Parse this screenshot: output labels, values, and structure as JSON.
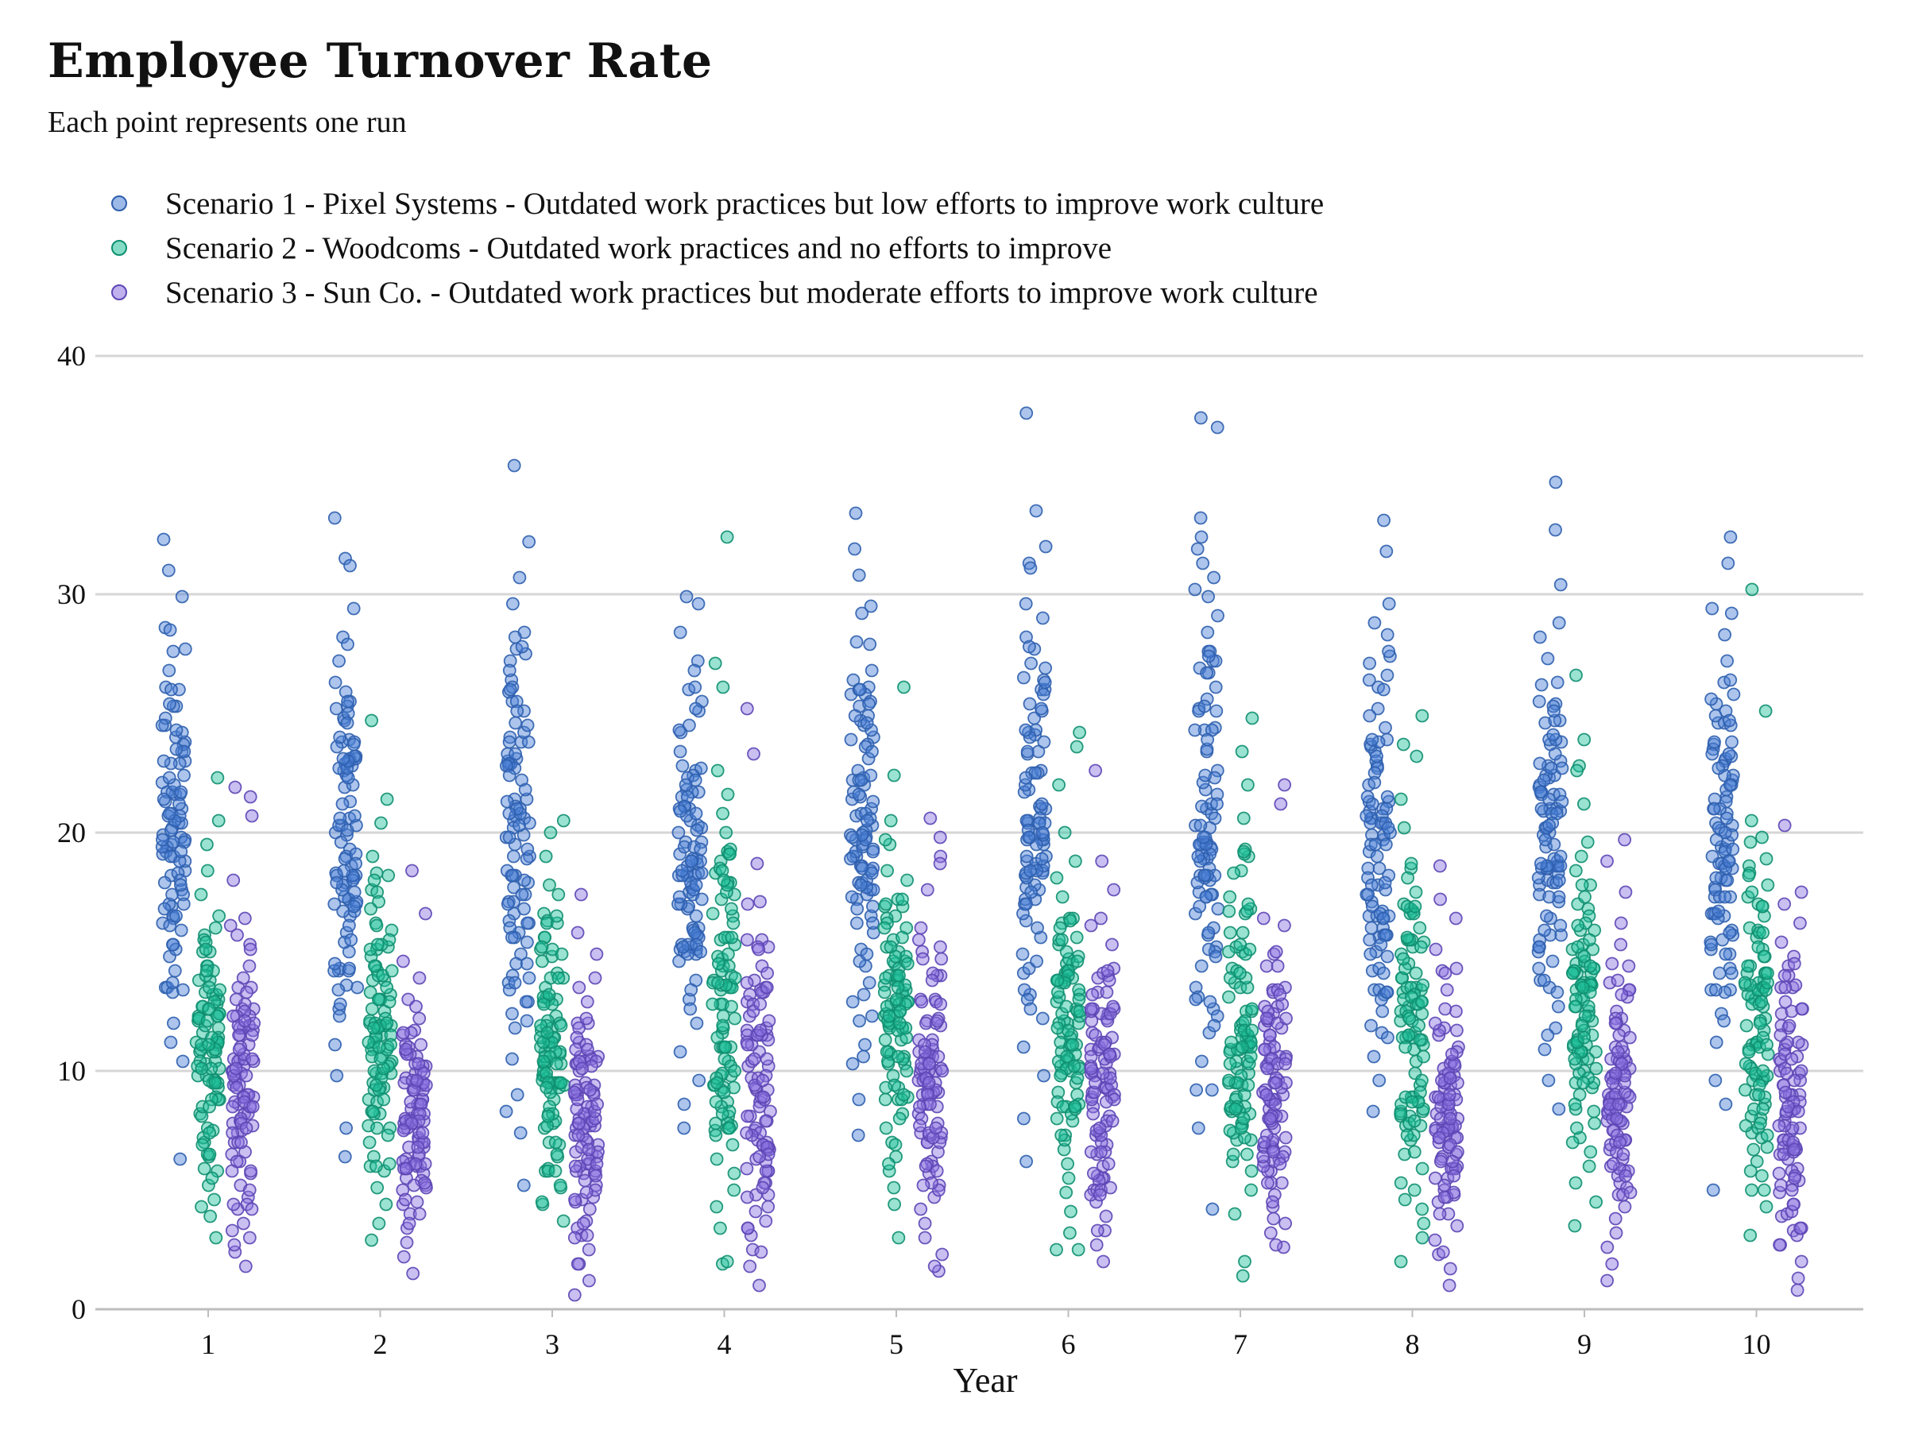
{
  "title": "Employee Turnover Rate",
  "subtitle": "Each point represents one run",
  "chart_data": {
    "type": "scatter",
    "title": "Employee Turnover Rate",
    "subtitle": "Each point represents one run",
    "xlabel": "Year",
    "ylabel": "",
    "ylim": [
      0,
      40
    ],
    "yticks": [
      0,
      10,
      20,
      30,
      40
    ],
    "categories": [
      "1",
      "2",
      "3",
      "4",
      "5",
      "6",
      "7",
      "8",
      "9",
      "10"
    ],
    "grid": "horizontal",
    "legend_position": "top-left",
    "series": [
      {
        "name": "Scenario 1 - Pixel Systems - Outdated work practices but low efforts to improve work culture",
        "color": "#4a7fd4",
        "points_per_year": 100,
        "values_by_year": {
          "1": [
            6.3,
            10.4,
            11.2,
            12.0,
            13.5,
            14.2,
            14.8,
            15.3,
            15.9,
            16.4,
            16.9,
            17.6,
            18.4,
            19.0,
            19.5,
            20.2,
            21.0,
            21.6,
            22.4,
            23.0,
            23.8,
            24.5,
            25.3,
            26.0,
            26.8,
            27.6,
            28.6,
            29.9,
            31.0,
            32.3
          ],
          "2": [
            6.4,
            7.6,
            9.8,
            11.1,
            12.6,
            13.5,
            14.2,
            15.0,
            15.8,
            16.5,
            17.2,
            17.9,
            18.6,
            19.3,
            20.0,
            20.6,
            21.3,
            21.9,
            22.6,
            23.2,
            23.9,
            24.7,
            25.5,
            26.3,
            27.2,
            28.2,
            29.4,
            31.5,
            33.2
          ],
          "3": [
            5.2,
            7.4,
            9.0,
            10.5,
            11.8,
            12.9,
            14.0,
            14.9,
            15.8,
            16.6,
            17.4,
            18.2,
            19.0,
            19.8,
            20.6,
            21.4,
            22.2,
            23.0,
            23.8,
            24.6,
            25.5,
            26.4,
            27.2,
            28.4,
            29.6,
            30.7,
            32.2,
            35.4
          ],
          "4": [
            7.6,
            8.6,
            9.6,
            10.8,
            12.0,
            13.0,
            13.8,
            14.6,
            15.3,
            16.0,
            16.8,
            17.5,
            18.2,
            18.9,
            19.6,
            20.3,
            21.0,
            21.8,
            22.6,
            23.4,
            24.2,
            25.1,
            26.0,
            27.2,
            28.4,
            29.6,
            29.9
          ],
          "5": [
            7.3,
            8.8,
            10.3,
            11.1,
            12.1,
            12.9,
            13.7,
            14.4,
            15.1,
            15.8,
            16.5,
            17.2,
            17.9,
            18.6,
            19.3,
            20.0,
            20.7,
            21.5,
            22.3,
            23.1,
            24.0,
            24.9,
            25.8,
            26.8,
            27.9,
            29.2,
            30.8,
            31.9,
            33.4
          ],
          "6": [
            6.2,
            8.0,
            9.8,
            11.0,
            12.2,
            13.2,
            14.1,
            14.9,
            15.6,
            16.3,
            17.0,
            17.7,
            18.4,
            19.0,
            19.7,
            20.4,
            21.1,
            21.8,
            22.5,
            23.3,
            24.2,
            25.1,
            26.0,
            27.1,
            28.2,
            29.6,
            31.3,
            32.0,
            33.5,
            37.6
          ],
          "7": [
            4.2,
            7.6,
            9.2,
            10.4,
            11.6,
            12.6,
            13.5,
            14.4,
            15.2,
            16.0,
            16.8,
            17.5,
            18.2,
            18.9,
            19.6,
            20.3,
            21.0,
            21.8,
            22.6,
            23.4,
            24.3,
            25.2,
            26.1,
            27.2,
            28.4,
            30.2,
            32.4,
            33.2,
            37.0,
            37.4
          ],
          "8": [
            8.3,
            9.6,
            10.6,
            11.6,
            12.5,
            13.4,
            14.2,
            15.0,
            15.7,
            16.4,
            17.1,
            17.8,
            18.5,
            19.2,
            19.9,
            20.6,
            21.3,
            22.0,
            22.8,
            23.6,
            24.4,
            25.2,
            26.1,
            27.4,
            28.8,
            29.6,
            31.8,
            33.1
          ],
          "9": [
            8.4,
            9.6,
            10.9,
            11.8,
            12.7,
            13.5,
            14.3,
            15.0,
            15.7,
            16.4,
            17.1,
            17.8,
            18.6,
            19.4,
            20.2,
            21.0,
            21.9,
            22.8,
            23.8,
            24.7,
            25.5,
            26.3,
            27.3,
            28.2,
            28.8,
            30.4,
            32.7,
            34.7
          ],
          "10": [
            5.0,
            8.6,
            9.6,
            11.2,
            12.4,
            13.4,
            14.3,
            15.1,
            15.9,
            16.6,
            17.3,
            18.0,
            18.7,
            19.4,
            20.1,
            20.8,
            21.5,
            22.2,
            23.0,
            23.8,
            24.6,
            25.4,
            26.3,
            27.2,
            28.3,
            29.4,
            31.3,
            32.4
          ]
        }
      },
      {
        "name": "Scenario 2 - Woodcoms - Outdated work practices and no efforts to improve",
        "color": "#1fbf98",
        "points_per_year": 100,
        "values_by_year": {
          "1": [
            3.0,
            3.9,
            4.6,
            5.2,
            5.8,
            6.4,
            7.0,
            7.6,
            8.2,
            8.8,
            9.3,
            9.8,
            10.3,
            10.8,
            11.3,
            11.8,
            12.3,
            12.8,
            13.3,
            13.8,
            14.4,
            15.0,
            15.7,
            16.5,
            17.4,
            18.4,
            19.5,
            20.5,
            22.3
          ],
          "2": [
            2.9,
            3.6,
            4.4,
            5.1,
            5.8,
            6.4,
            7.0,
            7.6,
            8.2,
            8.8,
            9.3,
            9.9,
            10.4,
            11.0,
            11.5,
            12.0,
            12.6,
            13.2,
            13.8,
            14.4,
            15.1,
            15.9,
            16.8,
            17.6,
            19.0,
            20.4,
            21.4,
            24.7
          ],
          "3": [
            3.7,
            4.4,
            5.1,
            5.8,
            6.4,
            7.0,
            7.6,
            8.2,
            8.8,
            9.3,
            9.8,
            10.3,
            10.8,
            11.3,
            11.8,
            12.3,
            12.9,
            13.5,
            14.1,
            14.8,
            15.6,
            16.6,
            17.8,
            19.0,
            20.0,
            20.5
          ],
          "4": [
            1.9,
            3.4,
            4.3,
            5.0,
            5.7,
            6.3,
            6.9,
            7.5,
            8.1,
            8.7,
            9.3,
            9.8,
            10.4,
            11.0,
            11.6,
            12.2,
            12.8,
            13.4,
            14.0,
            14.7,
            15.5,
            16.6,
            17.9,
            19.1,
            20.0,
            21.6,
            22.6,
            26.1,
            27.1,
            32.4
          ],
          "5": [
            3.0,
            4.4,
            5.1,
            5.8,
            6.4,
            7.0,
            7.6,
            8.2,
            8.8,
            9.3,
            9.8,
            10.3,
            10.8,
            11.3,
            11.8,
            12.3,
            12.8,
            13.3,
            13.9,
            14.5,
            15.2,
            16.0,
            16.9,
            18.0,
            19.5,
            20.5,
            22.4,
            26.1
          ],
          "6": [
            2.5,
            3.2,
            4.1,
            4.9,
            5.5,
            6.1,
            6.7,
            7.3,
            7.9,
            8.5,
            9.0,
            9.5,
            10.0,
            10.5,
            11.0,
            11.5,
            12.0,
            12.6,
            13.2,
            13.8,
            14.5,
            15.3,
            16.2,
            17.3,
            18.8,
            20.0,
            22.0,
            23.6,
            24.2
          ],
          "7": [
            1.4,
            2.0,
            4.0,
            5.0,
            5.8,
            6.5,
            7.1,
            7.7,
            8.3,
            8.9,
            9.4,
            9.9,
            10.4,
            10.9,
            11.4,
            11.9,
            12.5,
            13.1,
            13.7,
            14.3,
            15.0,
            15.8,
            16.8,
            17.3,
            19.0,
            20.6,
            22.0,
            23.4,
            24.8
          ],
          "8": [
            2.0,
            3.0,
            3.6,
            4.6,
            5.3,
            5.9,
            6.5,
            7.1,
            7.7,
            8.3,
            8.9,
            9.4,
            9.9,
            10.4,
            10.9,
            11.5,
            12.1,
            12.7,
            13.3,
            13.9,
            14.5,
            15.2,
            16.0,
            17.0,
            18.5,
            20.2,
            21.4,
            23.2,
            23.7,
            24.9
          ],
          "9": [
            3.5,
            4.5,
            5.3,
            6.0,
            6.6,
            7.2,
            7.8,
            8.4,
            9.0,
            9.5,
            10.0,
            10.5,
            11.0,
            11.5,
            12.0,
            12.5,
            13.1,
            13.7,
            14.4,
            15.1,
            15.9,
            16.8,
            17.8,
            19.0,
            19.6,
            21.2,
            22.8,
            23.9,
            26.6
          ],
          "10": [
            3.1,
            4.3,
            5.0,
            5.6,
            6.2,
            6.8,
            7.4,
            8.0,
            8.6,
            9.2,
            9.7,
            10.2,
            10.7,
            11.2,
            11.7,
            12.2,
            12.7,
            13.2,
            13.8,
            14.4,
            15.1,
            16.0,
            17.0,
            17.8,
            18.6,
            19.8,
            20.5,
            25.1,
            30.2
          ]
        }
      },
      {
        "name": "Scenario 3 - Sun Co. - Outdated work practices but moderate efforts to improve work culture",
        "color": "#8a70e0",
        "points_per_year": 100,
        "values_by_year": {
          "1": [
            1.8,
            2.4,
            3.0,
            3.6,
            4.2,
            4.7,
            5.2,
            5.7,
            6.2,
            6.6,
            7.0,
            7.4,
            7.8,
            8.2,
            8.6,
            9.0,
            9.5,
            10.0,
            10.5,
            11.1,
            11.8,
            12.6,
            13.5,
            14.4,
            15.3,
            16.1,
            18.0,
            20.7,
            21.5,
            21.9
          ],
          "2": [
            1.5,
            2.2,
            2.8,
            3.4,
            4.0,
            4.5,
            5.0,
            5.5,
            6.0,
            6.4,
            6.8,
            7.2,
            7.6,
            8.0,
            8.4,
            8.8,
            9.2,
            9.7,
            10.2,
            10.8,
            11.5,
            12.2,
            13.0,
            13.9,
            14.6,
            16.6,
            18.4
          ],
          "3": [
            0.6,
            1.2,
            1.9,
            2.5,
            3.1,
            3.7,
            4.2,
            4.7,
            5.2,
            5.7,
            6.1,
            6.5,
            6.9,
            7.3,
            7.7,
            8.1,
            8.5,
            9.0,
            9.5,
            10.0,
            10.6,
            11.2,
            12.0,
            12.9,
            13.9,
            14.9,
            15.8,
            17.4
          ],
          "4": [
            1.0,
            1.8,
            2.5,
            3.1,
            3.7,
            4.3,
            4.8,
            5.3,
            5.8,
            6.3,
            6.7,
            7.1,
            7.5,
            7.9,
            8.3,
            8.7,
            9.2,
            9.7,
            10.2,
            10.8,
            11.5,
            12.3,
            13.3,
            14.4,
            15.5,
            17.0,
            18.7,
            23.3,
            25.2
          ],
          "5": [
            1.6,
            2.3,
            3.0,
            3.6,
            4.2,
            4.7,
            5.2,
            5.7,
            6.2,
            6.6,
            7.0,
            7.4,
            7.8,
            8.2,
            8.6,
            9.0,
            9.5,
            10.0,
            10.6,
            11.3,
            12.1,
            13.0,
            14.0,
            15.0,
            16.0,
            17.6,
            19.0,
            19.8,
            20.6
          ],
          "6": [
            2.0,
            2.7,
            3.3,
            3.9,
            4.5,
            5.0,
            5.5,
            6.0,
            6.5,
            6.9,
            7.3,
            7.7,
            8.1,
            8.5,
            8.9,
            9.3,
            9.8,
            10.3,
            10.9,
            11.6,
            12.4,
            13.3,
            14.3,
            15.3,
            16.1,
            17.6,
            18.8,
            22.6
          ],
          "7": [
            2.6,
            3.2,
            3.8,
            4.3,
            4.8,
            5.3,
            5.8,
            6.3,
            6.8,
            7.2,
            7.6,
            8.0,
            8.4,
            8.8,
            9.2,
            9.6,
            10.1,
            10.6,
            11.2,
            11.9,
            12.7,
            13.5,
            14.9,
            16.4,
            21.2,
            22.0
          ],
          "8": [
            1.0,
            1.7,
            2.3,
            2.9,
            3.5,
            4.0,
            4.5,
            5.0,
            5.5,
            6.0,
            6.4,
            6.8,
            7.2,
            7.6,
            8.0,
            8.4,
            8.8,
            9.3,
            9.8,
            10.4,
            11.0,
            11.7,
            12.5,
            13.4,
            14.2,
            15.1,
            16.4,
            17.2,
            18.6
          ],
          "9": [
            1.2,
            1.9,
            2.6,
            3.2,
            3.8,
            4.3,
            4.8,
            5.3,
            5.8,
            6.3,
            6.7,
            7.1,
            7.5,
            7.9,
            8.3,
            8.8,
            9.3,
            9.8,
            10.4,
            11.0,
            11.7,
            12.5,
            13.4,
            14.4,
            15.3,
            16.2,
            17.5,
            18.8,
            19.7
          ],
          "10": [
            0.8,
            1.3,
            2.0,
            2.7,
            3.3,
            3.9,
            4.4,
            4.9,
            5.4,
            5.9,
            6.3,
            6.7,
            7.1,
            7.5,
            7.9,
            8.4,
            8.9,
            9.4,
            9.9,
            10.5,
            11.1,
            11.8,
            12.6,
            13.5,
            14.4,
            15.4,
            16.2,
            17.0,
            17.5,
            20.3
          ]
        }
      }
    ]
  }
}
